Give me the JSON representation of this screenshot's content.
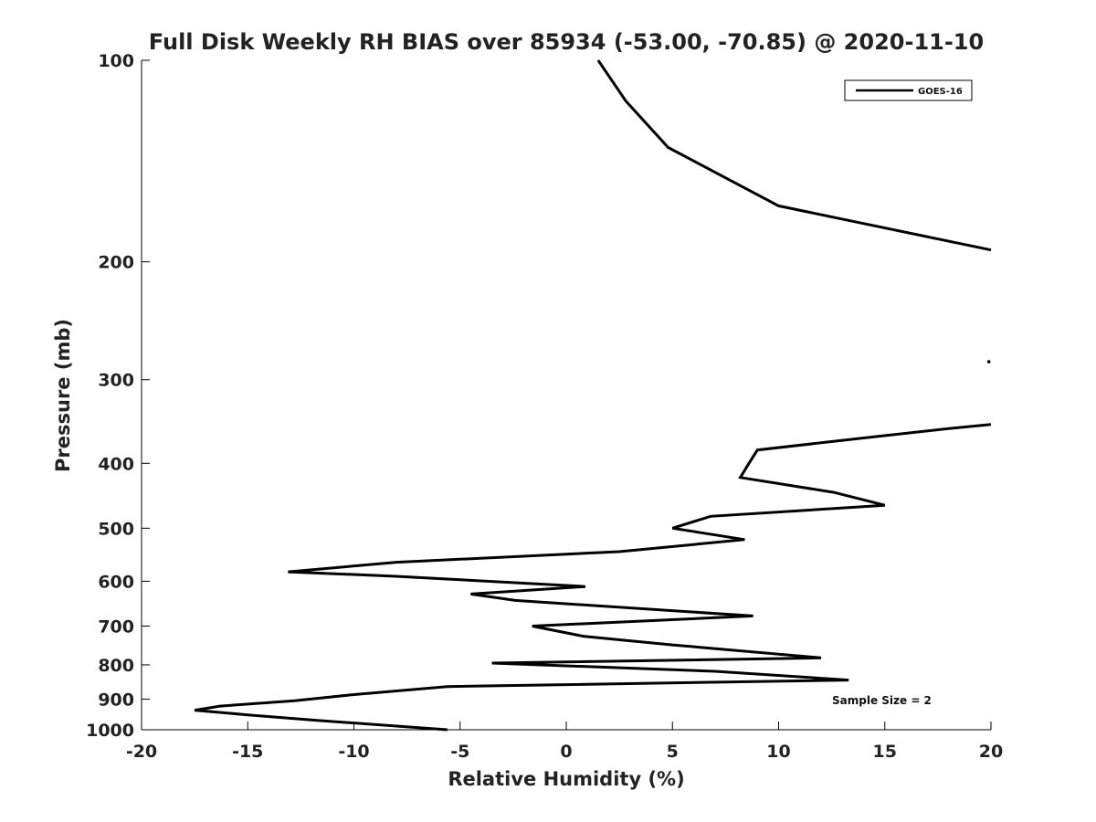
{
  "chart_data": {
    "type": "line",
    "title": "Full Disk Weekly RH BIAS over 85934 (-53.00, -70.85) @ 2020-11-10",
    "xlabel": "Relative Humidity (%)",
    "ylabel": "Pressure (mb)",
    "xlim": [
      -20,
      20
    ],
    "ylim": [
      100,
      1000
    ],
    "yscale": "log",
    "y_reversed": true,
    "x_ticks": [
      -20,
      -15,
      -10,
      -5,
      0,
      5,
      10,
      15,
      20
    ],
    "x_tick_labels": [
      "-20",
      "-15",
      "-10",
      "-5",
      "0",
      "5",
      "10",
      "15",
      "20"
    ],
    "y_ticks": [
      100,
      200,
      300,
      400,
      500,
      600,
      700,
      800,
      900,
      1000
    ],
    "y_tick_labels": [
      "100",
      "200",
      "300",
      "400",
      "500",
      "600",
      "700",
      "800",
      "900",
      "1000"
    ],
    "legend": {
      "position": "top-right",
      "entries": [
        "GOES-16"
      ]
    },
    "annotation": "Sample Size = 2",
    "series": [
      {
        "name": "GOES-16",
        "color": "#000000",
        "segments": [
          [
            [
              1.5,
              100
            ],
            [
              2.8,
              115
            ],
            [
              4.8,
              135
            ],
            [
              10.0,
              165
            ],
            [
              20.0,
              192
            ]
          ],
          [
            [
              20.0,
              350
            ],
            [
              18.0,
              355
            ],
            [
              14.5,
              365
            ],
            [
              9.0,
              382
            ],
            [
              8.6,
              400
            ],
            [
              8.2,
              420
            ],
            [
              12.6,
              442
            ],
            [
              15.0,
              462
            ],
            [
              6.8,
              480
            ],
            [
              5.0,
              500
            ],
            [
              8.4,
              520
            ],
            [
              2.5,
              542
            ],
            [
              -8.0,
              562
            ],
            [
              -13.1,
              581
            ],
            [
              -8.0,
              590
            ],
            [
              0.9,
              611
            ],
            [
              -4.5,
              627
            ],
            [
              -2.4,
              641
            ],
            [
              8.8,
              676
            ],
            [
              -1.6,
              700
            ],
            [
              0.8,
              725
            ],
            [
              5.0,
              747
            ],
            [
              12.0,
              781
            ],
            [
              -3.5,
              795
            ],
            [
              7.0,
              818
            ],
            [
              13.3,
              843
            ],
            [
              -5.6,
              862
            ],
            [
              -10.0,
              886
            ],
            [
              -12.8,
              905
            ],
            [
              -16.3,
              922
            ],
            [
              -17.5,
              935
            ],
            [
              -15.0,
              950
            ],
            [
              -11.8,
              968
            ],
            [
              -5.6,
              1000
            ]
          ]
        ],
        "isolated_points": [
          [
            19.9,
            282
          ]
        ]
      }
    ]
  }
}
